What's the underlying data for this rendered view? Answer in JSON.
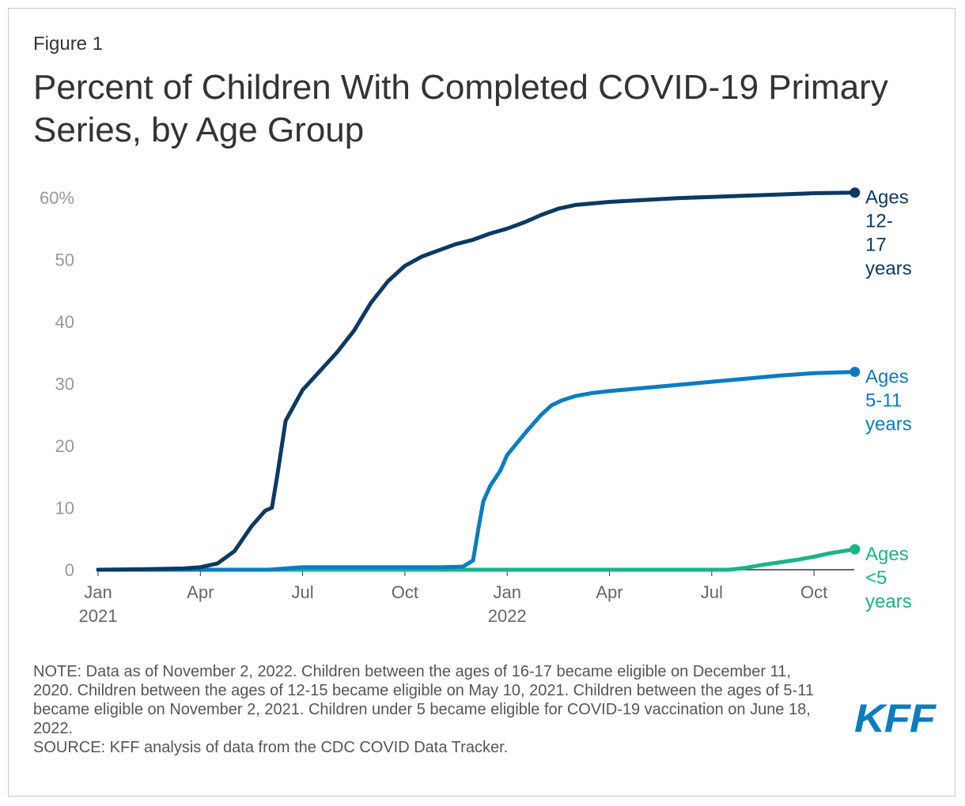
{
  "figure_label": "Figure 1",
  "title": "Percent of Children With Completed COVID-19 Primary Series, by Age Group",
  "note": "NOTE: Data as of November 2, 2022. Children between the ages of 16-17 became eligible on December 11, 2020. Children between the ages of 12-15 became eligible on May 10, 2021. Children between the ages of 5-11 became eligible on November 2, 2021. Children under 5 became eligible for COVID-19 vaccination on June 18, 2022.",
  "source": "SOURCE: KFF analysis of data from the CDC COVID Data Tracker.",
  "logo_text": "KFF",
  "colors": {
    "ages_12_17": "#0b3a63",
    "ages_5_11": "#0a7cc1",
    "ages_under_5": "#1ab38a",
    "axis_text": "#999999"
  },
  "chart_data": {
    "type": "line",
    "title": "Percent of Children With Completed COVID-19 Primary Series, by Age Group",
    "xlabel": "",
    "ylabel": "",
    "ylim": [
      0,
      60
    ],
    "y_ticks": [
      0,
      10,
      20,
      30,
      40,
      50,
      60
    ],
    "y_tick_labels": [
      "0",
      "10",
      "20",
      "30",
      "40",
      "50",
      "60%"
    ],
    "x_range_months": [
      0,
      22.2
    ],
    "x_ticks": [
      {
        "month": 0,
        "line1": "Jan",
        "line2": "2021"
      },
      {
        "month": 3,
        "line1": "Apr",
        "line2": ""
      },
      {
        "month": 6,
        "line1": "Jul",
        "line2": ""
      },
      {
        "month": 9,
        "line1": "Oct",
        "line2": ""
      },
      {
        "month": 12,
        "line1": "Jan",
        "line2": "2022"
      },
      {
        "month": 15,
        "line1": "Apr",
        "line2": ""
      },
      {
        "month": 18,
        "line1": "Jul",
        "line2": ""
      },
      {
        "month": 21,
        "line1": "Oct",
        "line2": ""
      }
    ],
    "grid": false,
    "series": [
      {
        "name": "Ages 12-17 years",
        "label_lines": [
          "Ages",
          "12-",
          "17",
          "years"
        ],
        "color": "#0b3a63",
        "x": [
          0,
          1.5,
          2.5,
          3.0,
          3.5,
          4.0,
          4.5,
          4.9,
          5.1,
          5.25,
          5.5,
          5.8,
          6.0,
          6.5,
          7.0,
          7.5,
          8.0,
          8.5,
          9.0,
          9.5,
          10.0,
          10.5,
          11.0,
          11.5,
          12.0,
          12.5,
          13.0,
          13.5,
          14.0,
          15.0,
          16.0,
          17.0,
          18.0,
          19.0,
          20.0,
          21.0,
          22.2
        ],
        "y": [
          0,
          0.1,
          0.2,
          0.4,
          1.0,
          3.0,
          7.0,
          9.5,
          10.0,
          15.0,
          24.0,
          27.0,
          29.0,
          32.0,
          35.0,
          38.5,
          43.0,
          46.5,
          49.0,
          50.5,
          51.5,
          52.5,
          53.2,
          54.2,
          55.0,
          56.0,
          57.2,
          58.2,
          58.8,
          59.3,
          59.6,
          59.9,
          60.1,
          60.3,
          60.5,
          60.7,
          60.8
        ]
      },
      {
        "name": "Ages 5-11 years",
        "label_lines": [
          "Ages",
          "5-11",
          "years"
        ],
        "color": "#0a7cc1",
        "x": [
          0,
          5.0,
          5.5,
          6.0,
          8.0,
          10.0,
          10.7,
          11.0,
          11.15,
          11.3,
          11.5,
          11.8,
          12.0,
          12.3,
          12.6,
          13.0,
          13.3,
          13.6,
          14.0,
          14.5,
          15.0,
          16.0,
          17.0,
          18.0,
          19.0,
          20.0,
          21.0,
          22.2
        ],
        "y": [
          0,
          0,
          0.2,
          0.4,
          0.4,
          0.4,
          0.5,
          1.5,
          6.5,
          11.0,
          13.5,
          16.0,
          18.5,
          20.5,
          22.5,
          25.0,
          26.5,
          27.3,
          28.0,
          28.5,
          28.8,
          29.3,
          29.8,
          30.3,
          30.8,
          31.3,
          31.7,
          31.9
        ]
      },
      {
        "name": "Ages <5 years",
        "label_lines": [
          "Ages",
          "<5",
          "years"
        ],
        "color": "#1ab38a",
        "x": [
          0,
          17.0,
          18.5,
          19.0,
          19.5,
          20.0,
          20.5,
          21.0,
          21.5,
          22.2
        ],
        "y": [
          0,
          0,
          0,
          0.3,
          0.8,
          1.2,
          1.6,
          2.1,
          2.7,
          3.3
        ]
      }
    ]
  }
}
